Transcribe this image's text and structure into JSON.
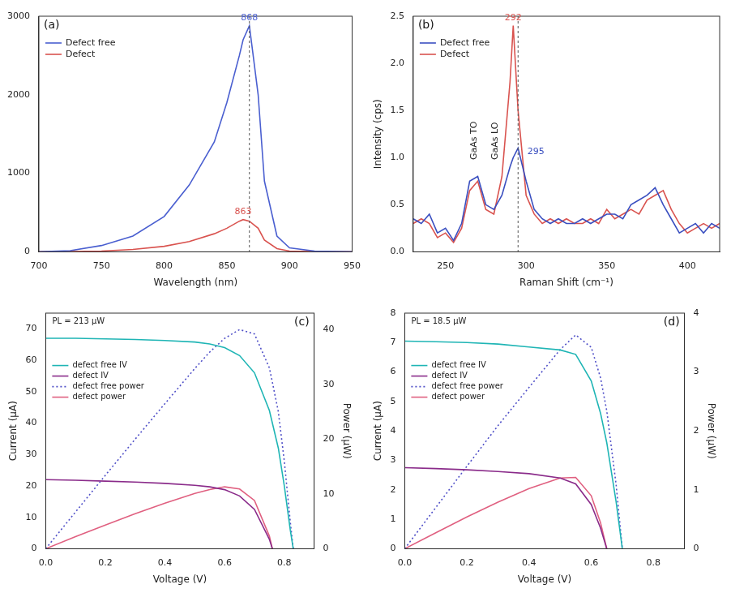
{
  "chart_data": [
    {
      "type": "line",
      "panel": "(a)",
      "x_label": "Wavelength (nm)",
      "xlim": [
        700,
        950
      ],
      "xticks": [
        700,
        750,
        800,
        850,
        900,
        950
      ],
      "ylim": [
        0,
        3000
      ],
      "yticks": [
        0,
        1000,
        2000,
        3000
      ],
      "grid": false,
      "legend": "upper left",
      "x": [
        700,
        725,
        750,
        775,
        800,
        820,
        840,
        850,
        860,
        863,
        868,
        875,
        880,
        890,
        900,
        920,
        950
      ],
      "series": [
        {
          "name": "Defect free",
          "color": "#4a5fd0",
          "values": [
            0,
            15,
            80,
            200,
            450,
            850,
            1400,
            1900,
            2500,
            2700,
            2880,
            2000,
            900,
            200,
            50,
            10,
            0
          ]
        },
        {
          "name": "Defect",
          "color": "#d9534f",
          "values": [
            0,
            3,
            10,
            30,
            70,
            130,
            230,
            300,
            390,
            410,
            390,
            300,
            150,
            40,
            10,
            3,
            0
          ]
        }
      ],
      "annotations": [
        {
          "text": "868",
          "x": 868,
          "y": 2900,
          "color": "#4a5fd0"
        },
        {
          "text": "863",
          "x": 863,
          "y": 430,
          "color": "#d9534f"
        }
      ],
      "vlines": [
        868
      ]
    },
    {
      "type": "line",
      "panel": "(b)",
      "x_label": "Raman Shift (cm⁻¹)",
      "y_label": "Intensity (cps)",
      "xlim": [
        230,
        420
      ],
      "xticks": [
        250,
        300,
        350,
        400
      ],
      "ylim": [
        0,
        2.5
      ],
      "yticks": [
        {
          "value": 0,
          "label": "0.0"
        },
        0.5,
        {
          "value": 1,
          "label": "1.0"
        },
        1.5,
        {
          "value": 2,
          "label": "2.0"
        },
        2.5
      ],
      "grid": false,
      "legend": "upper left",
      "x": [
        230,
        235,
        240,
        245,
        250,
        255,
        260,
        265,
        270,
        275,
        280,
        285,
        290,
        292,
        295,
        300,
        305,
        310,
        315,
        320,
        325,
        330,
        335,
        340,
        345,
        350,
        355,
        360,
        365,
        370,
        375,
        380,
        385,
        390,
        395,
        400,
        405,
        410,
        415,
        420
      ],
      "series": [
        {
          "name": "Defect free",
          "color": "#3a4fc0",
          "values": [
            0.35,
            0.3,
            0.4,
            0.2,
            0.25,
            0.12,
            0.3,
            0.75,
            0.8,
            0.5,
            0.45,
            0.6,
            0.9,
            1.0,
            1.1,
            0.75,
            0.45,
            0.35,
            0.3,
            0.35,
            0.3,
            0.3,
            0.35,
            0.3,
            0.35,
            0.4,
            0.4,
            0.35,
            0.5,
            0.55,
            0.6,
            0.68,
            0.5,
            0.35,
            0.2,
            0.25,
            0.3,
            0.2,
            0.3,
            0.25
          ]
        },
        {
          "name": "Defect",
          "color": "#d9534f",
          "values": [
            0.3,
            0.35,
            0.3,
            0.15,
            0.2,
            0.1,
            0.25,
            0.65,
            0.75,
            0.45,
            0.4,
            0.8,
            1.8,
            2.4,
            1.5,
            0.6,
            0.4,
            0.3,
            0.35,
            0.3,
            0.35,
            0.3,
            0.3,
            0.35,
            0.3,
            0.45,
            0.35,
            0.4,
            0.45,
            0.4,
            0.55,
            0.6,
            0.65,
            0.45,
            0.3,
            0.2,
            0.25,
            0.3,
            0.25,
            0.3
          ]
        }
      ],
      "annotations": [
        {
          "text": "GaAs TO",
          "x": 268,
          "y": 0.95,
          "color": "#222222",
          "orientation": "vertical"
        },
        {
          "text": "GaAs LO",
          "x": 281,
          "y": 0.95,
          "color": "#222222",
          "orientation": "vertical"
        },
        {
          "text": "292",
          "x": 292,
          "y": 2.42,
          "color": "#d9534f"
        },
        {
          "text": "295",
          "x": 306,
          "y": 1.0,
          "color": "#3a4fc0"
        }
      ],
      "vlines": [
        295
      ]
    },
    {
      "type": "line",
      "panel": "(c)",
      "title": "PL = 213 μW",
      "x_label": "Voltage (V)",
      "y_label": "Current (μA)",
      "y2_label": "Power (μW)",
      "xlim": [
        0,
        0.9
      ],
      "xticks": [
        {
          "value": 0,
          "label": "0.0"
        },
        0.2,
        0.4,
        0.6,
        0.8
      ],
      "ylim": [
        0,
        75
      ],
      "yticks": [
        0,
        10,
        20,
        30,
        40,
        50,
        60,
        70
      ],
      "y2lim": [
        0,
        43
      ],
      "y2ticks": [
        0,
        10,
        20,
        30,
        40
      ],
      "grid": false,
      "legend": "upper left",
      "x": [
        0,
        0.1,
        0.2,
        0.3,
        0.4,
        0.5,
        0.55,
        0.6,
        0.65,
        0.7,
        0.75,
        0.76,
        0.78,
        0.8,
        0.82,
        0.83
      ],
      "series": [
        {
          "name": "defect free IV",
          "color": "#1fb5b5",
          "line_style": "solid",
          "values": [
            67,
            67,
            66.8,
            66.6,
            66.3,
            65.8,
            65.2,
            64,
            61.5,
            56,
            44,
            40,
            32,
            20,
            6,
            0
          ]
        },
        {
          "name": "defect IV",
          "color": "#8a2b8a",
          "line_style": "solid",
          "values": [
            22,
            21.8,
            21.5,
            21.2,
            20.8,
            20.2,
            19.7,
            18.8,
            16.8,
            12.5,
            3,
            0,
            null,
            null,
            null,
            null
          ]
        },
        {
          "name": "defect free power",
          "color": "#5050c8",
          "line_style": "dotted",
          "axis": "y2",
          "values": [
            0,
            6.7,
            13.4,
            20,
            26.5,
            32.9,
            35.9,
            38.4,
            40,
            39.2,
            33,
            30.4,
            25,
            16,
            4.9,
            0
          ]
        },
        {
          "name": "defect power",
          "color": "#e06080",
          "line_style": "solid",
          "axis": "y2",
          "values": [
            0,
            2.2,
            4.3,
            6.4,
            8.3,
            10.1,
            10.8,
            11.3,
            10.9,
            8.8,
            2.3,
            0,
            null,
            null,
            null,
            null
          ]
        }
      ]
    },
    {
      "type": "line",
      "panel": "(d)",
      "title": "PL = 18.5 μW",
      "x_label": "Voltage (V)",
      "y_label": "Current (μA)",
      "y2_label": "Power (μW)",
      "xlim": [
        0,
        0.9
      ],
      "xticks": [
        {
          "value": 0,
          "label": "0.0"
        },
        0.2,
        0.4,
        0.6,
        0.8
      ],
      "ylim": [
        0,
        8
      ],
      "yticks": [
        0,
        1,
        2,
        3,
        4,
        5,
        6,
        7,
        8
      ],
      "y2lim": [
        0,
        4
      ],
      "y2ticks": [
        0,
        1,
        2,
        3,
        4
      ],
      "grid": false,
      "legend": "upper left",
      "x": [
        0,
        0.1,
        0.2,
        0.3,
        0.4,
        0.5,
        0.55,
        0.6,
        0.63,
        0.65,
        0.68,
        0.7
      ],
      "series": [
        {
          "name": "defect free IV",
          "color": "#1fb5b5",
          "line_style": "solid",
          "values": [
            7.05,
            7.03,
            7.0,
            6.95,
            6.85,
            6.75,
            6.6,
            5.7,
            4.6,
            3.6,
            1.6,
            0
          ]
        },
        {
          "name": "defect IV",
          "color": "#8a2b8a",
          "line_style": "solid",
          "values": [
            2.75,
            2.72,
            2.68,
            2.62,
            2.55,
            2.4,
            2.2,
            1.5,
            0.7,
            0,
            null,
            null
          ]
        },
        {
          "name": "defect free power",
          "color": "#5050c8",
          "line_style": "dotted",
          "axis": "y2",
          "values": [
            0,
            0.7,
            1.4,
            2.09,
            2.74,
            3.38,
            3.63,
            3.42,
            2.9,
            2.34,
            1.09,
            0
          ]
        },
        {
          "name": "defect power",
          "color": "#e06080",
          "line_style": "solid",
          "axis": "y2",
          "values": [
            0,
            0.27,
            0.54,
            0.79,
            1.02,
            1.2,
            1.21,
            0.9,
            0.44,
            0,
            null,
            null
          ]
        }
      ]
    }
  ]
}
